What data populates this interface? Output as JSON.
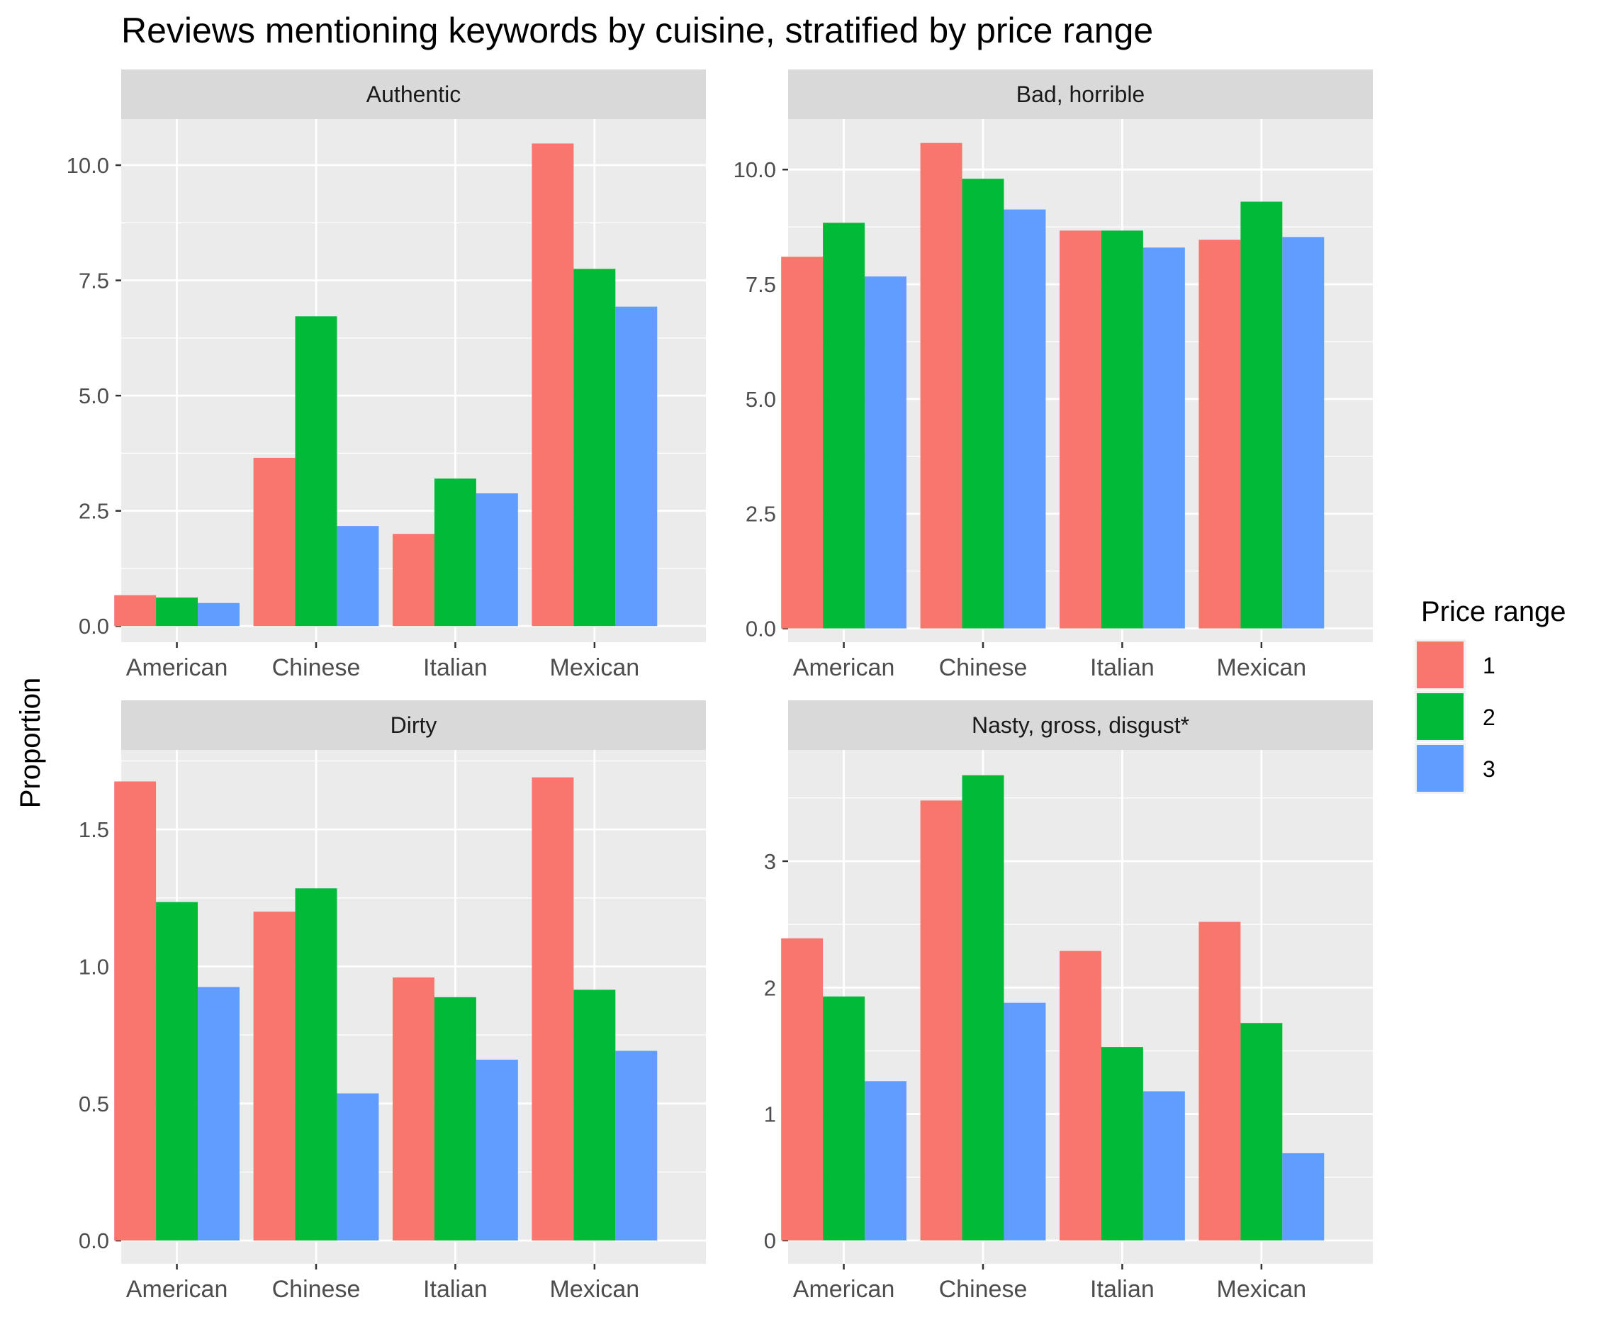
{
  "chart_data": {
    "type": "bar",
    "title": "Reviews mentioning keywords by cuisine, stratified by price range",
    "ylabel": "Proportion",
    "xlabel": "",
    "categories": [
      "American",
      "Chinese",
      "Italian",
      "Mexican"
    ],
    "legend": {
      "title": "Price range",
      "position": "right",
      "items": [
        {
          "label": "1",
          "color": "#F8766D"
        },
        {
          "label": "2",
          "color": "#00BA38"
        },
        {
          "label": "3",
          "color": "#619CFF"
        }
      ]
    },
    "background": "#EBEBEB",
    "strip_background": "#D9D9D9",
    "grid": true,
    "panels": [
      {
        "title": "Authentic",
        "ylim": [
          -0.35,
          11.0
        ],
        "yticks": [
          0,
          2.5,
          5,
          7.5,
          10
        ],
        "yticklabels": [
          "0.0",
          "2.5",
          "5.0",
          "7.5",
          "10.0"
        ],
        "series": [
          {
            "name": "1",
            "values": [
              0.67,
              3.65,
              2.0,
              10.47
            ]
          },
          {
            "name": "2",
            "values": [
              0.62,
              6.72,
              3.2,
              7.75
            ]
          },
          {
            "name": "3",
            "values": [
              0.5,
              2.17,
              2.88,
              6.93
            ]
          }
        ]
      },
      {
        "title": "Bad, horrible",
        "ylim": [
          -0.3,
          11.1
        ],
        "yticks": [
          0,
          2.5,
          5,
          7.5,
          10
        ],
        "yticklabels": [
          "0.0",
          "2.5",
          "5.0",
          "7.5",
          "10.0"
        ],
        "series": [
          {
            "name": "1",
            "values": [
              8.1,
              10.58,
              8.67,
              8.47
            ]
          },
          {
            "name": "2",
            "values": [
              8.84,
              9.8,
              8.67,
              9.3
            ]
          },
          {
            "name": "3",
            "values": [
              7.67,
              9.13,
              8.3,
              8.53
            ]
          }
        ]
      },
      {
        "title": "Dirty",
        "ylim": [
          -0.085,
          1.79
        ],
        "yticks": [
          0,
          0.5,
          1,
          1.5
        ],
        "yticklabels": [
          "0.0",
          "0.5",
          "1.0",
          "1.5"
        ],
        "series": [
          {
            "name": "1",
            "values": [
              1.675,
              1.2,
              0.96,
              1.69
            ]
          },
          {
            "name": "2",
            "values": [
              1.235,
              1.285,
              0.888,
              0.915
            ]
          },
          {
            "name": "3",
            "values": [
              0.925,
              0.537,
              0.66,
              0.692
            ]
          }
        ]
      },
      {
        "title": "Nasty, gross, disgust*",
        "ylim": [
          -0.185,
          3.88
        ],
        "yticks": [
          0,
          1,
          2,
          3
        ],
        "yticklabels": [
          "0",
          "1",
          "2",
          "3"
        ],
        "series": [
          {
            "name": "1",
            "values": [
              2.39,
              3.48,
              2.29,
              2.52
            ]
          },
          {
            "name": "2",
            "values": [
              1.93,
              3.68,
              1.53,
              1.72
            ]
          },
          {
            "name": "3",
            "values": [
              1.26,
              1.88,
              1.18,
              0.69
            ]
          }
        ]
      }
    ]
  }
}
